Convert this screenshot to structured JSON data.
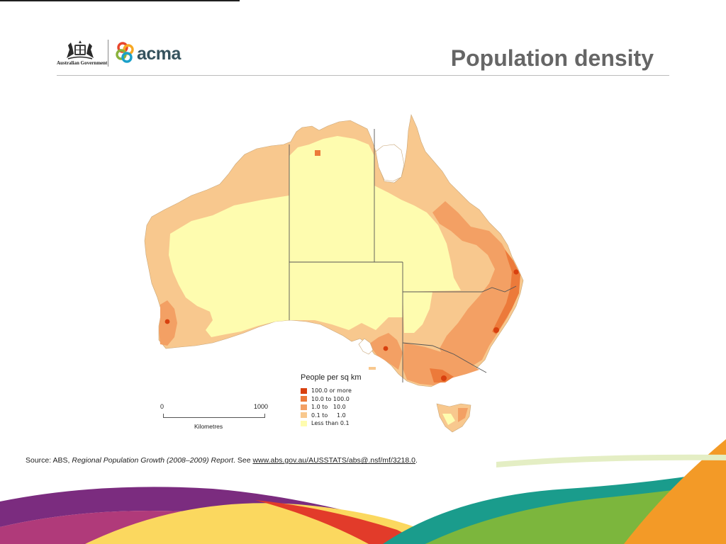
{
  "slide": {
    "title": "Population density"
  },
  "logos": {
    "government": {
      "icon": "coat-of-arms-icon",
      "text": "Australian Government"
    },
    "acma": {
      "icon": "acma-rings-icon",
      "text": "acma"
    }
  },
  "map": {
    "region": "Australia",
    "legend": {
      "title": "People per sq km",
      "items": [
        {
          "label": "100.0 or more",
          "color": "#d8400f"
        },
        {
          "label": "10.0 to 100.0",
          "color": "#ec7a3a"
        },
        {
          "label": "1.0 to   10.0",
          "color": "#f3a064"
        },
        {
          "label": "0.1 to     1.0",
          "color": "#f8c88e"
        },
        {
          "label": "Less than 0.1",
          "color": "#fefcaf"
        }
      ]
    },
    "scale": {
      "start": "0",
      "end": "1000",
      "unit": "Kilometres"
    }
  },
  "source": {
    "prefix": "Source:  ABS, ",
    "report": "Regional Population Growth (2008–2009) Report",
    "see": ". See ",
    "url": "www.abs.gov.au/AUSSTATS/abs@.nsf/mf/3218.0",
    "suffix": "."
  }
}
